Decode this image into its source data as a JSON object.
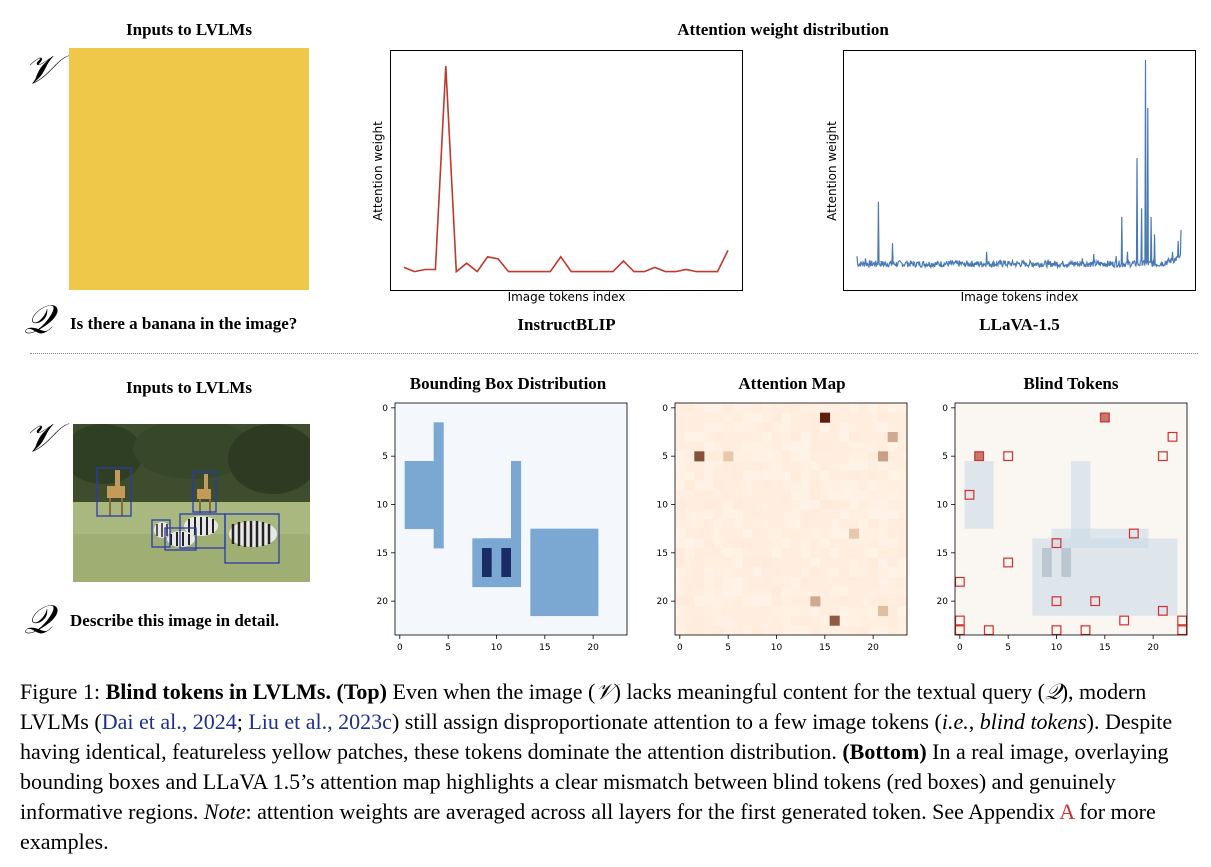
{
  "top": {
    "inputs_title": "Inputs to LVLMs",
    "v_symbol": "𝒱",
    "q_symbol": "𝒬",
    "query": "Is there a banana in the image?",
    "yellow_color": "#efc84a",
    "attention_title": "Attention weight distribution"
  },
  "bottom": {
    "inputs_title": "Inputs to LVLMs",
    "v_symbol": "𝒱",
    "q_symbol": "𝒬",
    "query": "Describe this image in detail.",
    "bbox_title": "Bounding Box Distribution",
    "attn_map_title": "Attention Map",
    "blind_title": "Blind Tokens"
  },
  "chart_data": [
    {
      "type": "line",
      "title": "InstructBLIP",
      "xlabel": "Image tokens index",
      "ylabel": "Attention weight",
      "color": "#c0392b",
      "x": [
        0,
        1,
        2,
        3,
        4,
        5,
        6,
        7,
        8,
        9,
        10,
        11,
        12,
        13,
        14,
        15,
        16,
        17,
        18,
        19,
        20,
        21,
        22,
        23,
        24,
        25,
        26,
        27,
        28,
        29,
        30,
        31
      ],
      "values": [
        0.05,
        0.03,
        0.04,
        0.04,
        1.0,
        0.03,
        0.07,
        0.03,
        0.1,
        0.09,
        0.03,
        0.03,
        0.03,
        0.03,
        0.03,
        0.1,
        0.03,
        0.03,
        0.03,
        0.03,
        0.03,
        0.08,
        0.03,
        0.03,
        0.05,
        0.03,
        0.03,
        0.04,
        0.03,
        0.03,
        0.03,
        0.13
      ],
      "ylim": [
        0,
        1.1
      ]
    },
    {
      "type": "line",
      "title": "LLaVA-1.5",
      "xlabel": "Image tokens index",
      "ylabel": "Attention weight",
      "color": "#4a7ab5",
      "x_count": 576,
      "peaks": [
        [
          0,
          0.1
        ],
        [
          15,
          0.09
        ],
        [
          38,
          0.35
        ],
        [
          63,
          0.16
        ],
        [
          88,
          0.07
        ],
        [
          102,
          0.07
        ],
        [
          140,
          0.06
        ],
        [
          190,
          0.06
        ],
        [
          210,
          0.06
        ],
        [
          230,
          0.12
        ],
        [
          260,
          0.08
        ],
        [
          300,
          0.07
        ],
        [
          340,
          0.06
        ],
        [
          370,
          0.06
        ],
        [
          400,
          0.09
        ],
        [
          420,
          0.11
        ],
        [
          440,
          0.07
        ],
        [
          460,
          0.1
        ],
        [
          470,
          0.28
        ],
        [
          480,
          0.12
        ],
        [
          497,
          0.55
        ],
        [
          505,
          0.32
        ],
        [
          512,
          1.0
        ],
        [
          516,
          0.78
        ],
        [
          522,
          0.28
        ],
        [
          528,
          0.2
        ],
        [
          540,
          0.07
        ],
        [
          560,
          0.12
        ],
        [
          570,
          0.17
        ],
        [
          575,
          0.22
        ]
      ],
      "baseline": 0.05,
      "ylim": [
        0,
        1.1
      ]
    },
    {
      "type": "heatmap",
      "title": "Bounding Box Distribution",
      "grid": 24,
      "ticks": [
        "0",
        "5",
        "10",
        "15",
        "20"
      ],
      "cells": [
        [
          4,
          2
        ],
        [
          4,
          3
        ],
        [
          4,
          4
        ],
        [
          4,
          5
        ],
        [
          4,
          6
        ],
        [
          4,
          7
        ],
        [
          4,
          8
        ],
        [
          4,
          9
        ],
        [
          4,
          10
        ],
        [
          4,
          11
        ],
        [
          4,
          12
        ],
        [
          4,
          13
        ],
        [
          4,
          14
        ],
        [
          12,
          6
        ],
        [
          12,
          7
        ],
        [
          12,
          8
        ],
        [
          12,
          9
        ],
        [
          12,
          10
        ],
        [
          12,
          11
        ],
        [
          12,
          12
        ],
        [
          12,
          13
        ],
        [
          9,
          14
        ],
        [
          9,
          15
        ],
        [
          9,
          16
        ],
        [
          9,
          17
        ],
        [
          9,
          18
        ],
        [
          10,
          14
        ],
        [
          10,
          15
        ],
        [
          10,
          16
        ],
        [
          10,
          17
        ],
        [
          10,
          18
        ],
        [
          11,
          14
        ],
        [
          11,
          15
        ],
        [
          11,
          16
        ],
        [
          11,
          17
        ],
        [
          11,
          18
        ],
        [
          14,
          13
        ],
        [
          14,
          14
        ],
        [
          14,
          15
        ],
        [
          14,
          16
        ],
        [
          14,
          17
        ],
        [
          14,
          18
        ],
        [
          14,
          19
        ],
        [
          14,
          20
        ],
        [
          14,
          21
        ],
        [
          15,
          13
        ],
        [
          15,
          14
        ],
        [
          15,
          15
        ],
        [
          15,
          16
        ],
        [
          15,
          17
        ],
        [
          15,
          18
        ],
        [
          15,
          19
        ],
        [
          15,
          20
        ],
        [
          15,
          21
        ],
        [
          16,
          13
        ],
        [
          16,
          14
        ],
        [
          16,
          15
        ],
        [
          16,
          16
        ],
        [
          16,
          17
        ],
        [
          16,
          18
        ],
        [
          16,
          19
        ],
        [
          16,
          20
        ],
        [
          16,
          21
        ],
        [
          17,
          13
        ],
        [
          17,
          14
        ],
        [
          17,
          15
        ],
        [
          17,
          16
        ],
        [
          17,
          17
        ],
        [
          17,
          18
        ],
        [
          17,
          19
        ],
        [
          17,
          20
        ],
        [
          17,
          21
        ],
        [
          18,
          13
        ],
        [
          18,
          14
        ],
        [
          18,
          15
        ],
        [
          18,
          16
        ],
        [
          18,
          17
        ],
        [
          18,
          18
        ],
        [
          18,
          19
        ],
        [
          18,
          20
        ],
        [
          18,
          21
        ],
        [
          19,
          13
        ],
        [
          19,
          14
        ],
        [
          19,
          15
        ],
        [
          19,
          16
        ],
        [
          19,
          17
        ],
        [
          19,
          18
        ],
        [
          19,
          19
        ],
        [
          19,
          20
        ],
        [
          19,
          21
        ],
        [
          20,
          13
        ],
        [
          20,
          14
        ],
        [
          20,
          15
        ],
        [
          20,
          16
        ],
        [
          20,
          17
        ],
        [
          20,
          18
        ],
        [
          20,
          19
        ],
        [
          20,
          20
        ],
        [
          20,
          21
        ]
      ]
    },
    {
      "type": "heatmap",
      "title": "Attention Map",
      "grid": 24,
      "ticks": [
        "0",
        "5",
        "10",
        "15",
        "20"
      ],
      "hot": [
        [
          15,
          1,
          1.0
        ],
        [
          2,
          5,
          0.75
        ],
        [
          16,
          22,
          0.7
        ],
        [
          21,
          5,
          0.35
        ],
        [
          22,
          3,
          0.3
        ],
        [
          14,
          20,
          0.3
        ],
        [
          21,
          21,
          0.2
        ],
        [
          5,
          5,
          0.15
        ],
        [
          18,
          13,
          0.15
        ]
      ]
    },
    {
      "type": "heatmap",
      "title": "Blind Tokens",
      "grid": 24,
      "ticks": [
        "0",
        "5",
        "10",
        "15",
        "20"
      ],
      "blind": [
        [
          15,
          1
        ],
        [
          2,
          5
        ],
        [
          5,
          5
        ],
        [
          22,
          3
        ],
        [
          21,
          5
        ],
        [
          1,
          9
        ],
        [
          18,
          13
        ],
        [
          10,
          14
        ],
        [
          5,
          16
        ],
        [
          0,
          18
        ],
        [
          10,
          20
        ],
        [
          14,
          20
        ],
        [
          21,
          21
        ],
        [
          17,
          22
        ],
        [
          0,
          22
        ],
        [
          23,
          22
        ],
        [
          0,
          23
        ],
        [
          3,
          23
        ],
        [
          10,
          23
        ],
        [
          13,
          23
        ],
        [
          23,
          23
        ]
      ]
    }
  ],
  "chart_labels": {
    "instruct_title": "InstructBLIP",
    "llava_title": "LLaVA-1.5",
    "xlabel": "Image tokens index",
    "ylabel": "Attention weight"
  },
  "caption": {
    "prefix": "Figure 1: ",
    "bold1": "Blind tokens in LVLMs. (Top)",
    "t1": " Even when the image (",
    "v": "𝒱",
    "t2": ") lacks meaningful content for the textual query (",
    "q": "𝒬",
    "t3": "), modern LVLMs (",
    "cite1": "Dai et al., 2024",
    "sep": "; ",
    "cite2": "Liu et al., 2023c",
    "t4": ") still assign disproportionate attention to a few image tokens (",
    "ie": "i.e.",
    "comma": ", ",
    "blind": "blind tokens",
    "t5": "). Despite having identical, featureless yellow patches, these tokens dominate the attention distribution. ",
    "bold2": "(Bottom)",
    "t6": " In a real image, overlaying bounding boxes and LLaVA 1.5’s attention map highlights a clear mismatch between blind tokens (red boxes) and genuinely informative regions. ",
    "note": "Note",
    "t7": ": attention weights are averaged across all layers for the first generated token. See Appendix ",
    "appendix": "A",
    "t8": " for more examples."
  }
}
